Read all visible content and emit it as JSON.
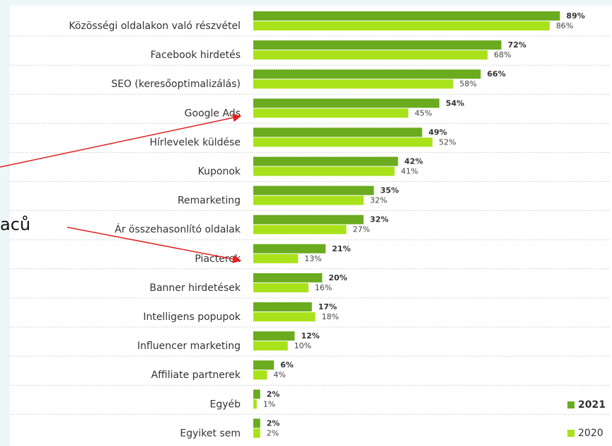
{
  "chart_data": {
    "type": "bar",
    "orientation": "horizontal",
    "annotation": "aců",
    "categories": [
      "Közösségi oldalakon való részvétel",
      "Facebook hirdetés",
      "SEO (keresőoptimalizálás)",
      "Google Ads",
      "Hírlevelek küldése",
      "Kuponok",
      "Remarketing",
      "Ár összehasonlító oldalak",
      "Piacterek",
      "Banner hirdetések",
      "Intelligens popupok",
      "Influencer marketing",
      "Affiliate partnerek",
      "Egyéb",
      "Egyiket sem"
    ],
    "series": [
      {
        "name": "2021",
        "color": "#6aab1f",
        "values": [
          89,
          72,
          66,
          54,
          49,
          42,
          35,
          32,
          21,
          20,
          17,
          12,
          6,
          2,
          2
        ],
        "value_labels": [
          "89%",
          "72%",
          "66%",
          "54%",
          "49%",
          "42%",
          "35%",
          "32%",
          "21%",
          "20%",
          "17%",
          "12%",
          "6%",
          "2%",
          "2%"
        ]
      },
      {
        "name": "2020",
        "color": "#a9e21b",
        "values": [
          86,
          68,
          58,
          45,
          52,
          41,
          32,
          27,
          13,
          16,
          18,
          10,
          4,
          1,
          2
        ],
        "value_labels": [
          "86%",
          "68%",
          "58%",
          "45%",
          "52%",
          "41%",
          "32%",
          "27%",
          "13%",
          "16%",
          "18%",
          "10%",
          "4%",
          "1%",
          "2%"
        ]
      }
    ]
  }
}
